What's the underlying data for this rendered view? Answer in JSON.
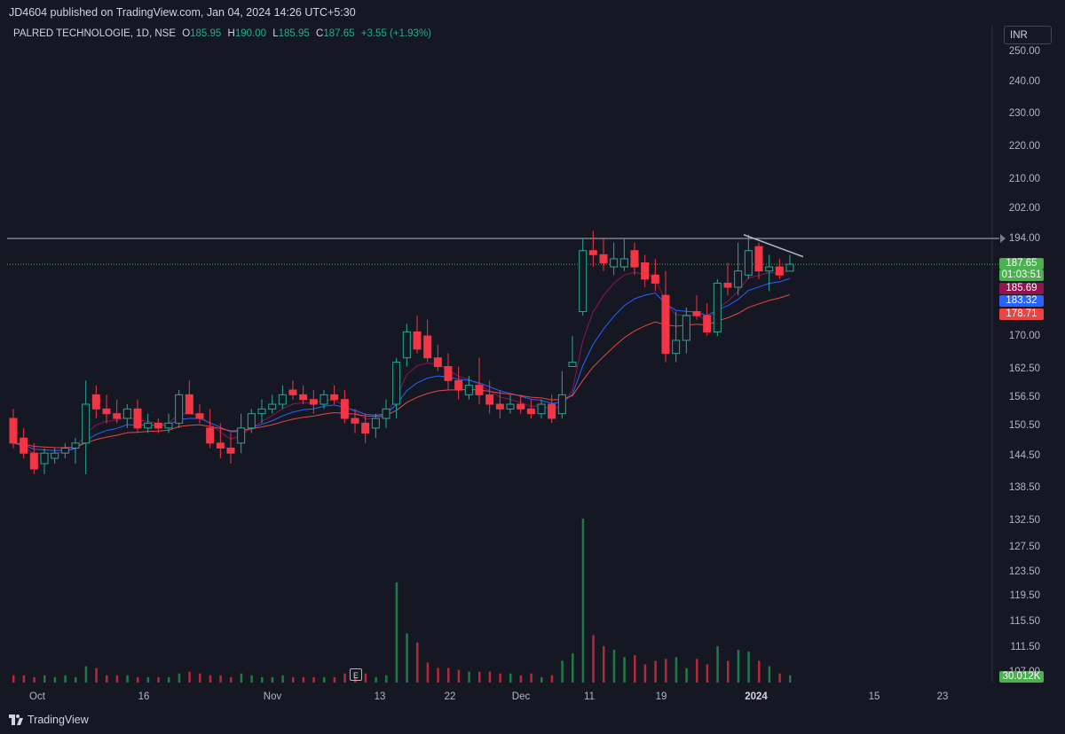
{
  "header": {
    "published_line": "JD4604 published on TradingView.com, Jan 04, 2024 14:26 UTC+5:30"
  },
  "legend": {
    "symbol": "PALRED TECHNOLOGIE, 1D, NSE",
    "o_label": "O",
    "o_value": "185.95",
    "h_label": "H",
    "h_value": "190.00",
    "l_label": "L",
    "l_value": "185.95",
    "c_label": "C",
    "c_value": "187.65",
    "change": "+3.55 (+1.93%)"
  },
  "currency": "INR",
  "price_axis": {
    "ticks": [
      "250.00",
      "240.00",
      "230.00",
      "220.00",
      "210.00",
      "202.00",
      "194.00",
      "170.00",
      "162.50",
      "156.50",
      "150.50",
      "144.50",
      "138.50",
      "132.50",
      "127.50",
      "123.50",
      "119.50",
      "115.50",
      "111.50",
      "107.00"
    ]
  },
  "price_tags": {
    "last_price": "187.65",
    "countdown": "01:03:51",
    "ema1": "185.69",
    "ema2": "183.32",
    "ema3": "178.71",
    "volume": "30.012K"
  },
  "time_axis": {
    "labels": [
      "Oct",
      "16",
      "Nov",
      "13",
      "22",
      "Dec",
      "11",
      "19",
      "2024",
      "15",
      "23"
    ],
    "bold_label": "2024"
  },
  "earnings_marker": "E",
  "footer": {
    "brand": "TradingView"
  },
  "colors": {
    "up": "#22ab94",
    "down": "#f23645",
    "ema1": "#8e1550",
    "ema2": "#2962ff",
    "ema3": "#e84545",
    "background": "#151823",
    "last_price_tag": "#4caf50"
  },
  "chart_data": {
    "type": "candlestick",
    "ohlc": [
      [
        152,
        154,
        146,
        147
      ],
      [
        148,
        150,
        144,
        145
      ],
      [
        145,
        147,
        141,
        142
      ],
      [
        143,
        146,
        141,
        145
      ],
      [
        144,
        146,
        143,
        145
      ],
      [
        145,
        147,
        144,
        146
      ],
      [
        146,
        148,
        143,
        147
      ],
      [
        147,
        160,
        141,
        155
      ],
      [
        157,
        159,
        152,
        154
      ],
      [
        154,
        157,
        151,
        153
      ],
      [
        153,
        156,
        151,
        152
      ],
      [
        152,
        155,
        150,
        154
      ],
      [
        154,
        156,
        149,
        150
      ],
      [
        150,
        153,
        149,
        151
      ],
      [
        151,
        152,
        149,
        150
      ],
      [
        150,
        153,
        149,
        151
      ],
      [
        151,
        158,
        150,
        157
      ],
      [
        157,
        160,
        153,
        153
      ],
      [
        153,
        155,
        151,
        152
      ],
      [
        150,
        154,
        146,
        147
      ],
      [
        147,
        151,
        144,
        146
      ],
      [
        146,
        149,
        143,
        145
      ],
      [
        147,
        153,
        145,
        150
      ],
      [
        150,
        154,
        149,
        153
      ],
      [
        153,
        156,
        151,
        154
      ],
      [
        154,
        157,
        153,
        155
      ],
      [
        155,
        159,
        154,
        157
      ],
      [
        158,
        160,
        156,
        157
      ],
      [
        157,
        159,
        155,
        156
      ],
      [
        156,
        158,
        153,
        155
      ],
      [
        155,
        158,
        154,
        157
      ],
      [
        157,
        159,
        155,
        156
      ],
      [
        156,
        158,
        151,
        152
      ],
      [
        152,
        154,
        149,
        151
      ],
      [
        151,
        153,
        147,
        149
      ],
      [
        150,
        153,
        148,
        152
      ],
      [
        152,
        156,
        150,
        154
      ],
      [
        155,
        165,
        152,
        164
      ],
      [
        165,
        173,
        163,
        171
      ],
      [
        171,
        175,
        166,
        167
      ],
      [
        170,
        174,
        164,
        165
      ],
      [
        165,
        168,
        162,
        163
      ],
      [
        163,
        166,
        158,
        160
      ],
      [
        160,
        163,
        156,
        158
      ],
      [
        157,
        161,
        156,
        159
      ],
      [
        159,
        165,
        155,
        157
      ],
      [
        157,
        160,
        153,
        155
      ],
      [
        155,
        158,
        152,
        154
      ],
      [
        154,
        157,
        153,
        155
      ],
      [
        155,
        157,
        153,
        154
      ],
      [
        154,
        156,
        152,
        153
      ],
      [
        153,
        156,
        152,
        155
      ],
      [
        155,
        157,
        151,
        152
      ],
      [
        153,
        162,
        152,
        157
      ],
      [
        163,
        170,
        163,
        164
      ],
      [
        176,
        194,
        175,
        191
      ],
      [
        191,
        196,
        187,
        190
      ],
      [
        190,
        194,
        186,
        188
      ],
      [
        187,
        193,
        185,
        189
      ],
      [
        187,
        194,
        186,
        189
      ],
      [
        191,
        193,
        185,
        187
      ],
      [
        188,
        190,
        182,
        184
      ],
      [
        185,
        189,
        181,
        183
      ],
      [
        180,
        186,
        164,
        166
      ],
      [
        166,
        176,
        164,
        169
      ],
      [
        169,
        177,
        166,
        175
      ],
      [
        176,
        180,
        174,
        175
      ],
      [
        175,
        178,
        170,
        171
      ],
      [
        171,
        184,
        170,
        183
      ],
      [
        183,
        188,
        180,
        182
      ],
      [
        182,
        193,
        180,
        186
      ],
      [
        185,
        195,
        184,
        191
      ],
      [
        192,
        193,
        184,
        186
      ],
      [
        186,
        190,
        181,
        187
      ],
      [
        187,
        189,
        184,
        185
      ],
      [
        185.95,
        190,
        185.95,
        187.65
      ]
    ],
    "volume_colors": "up=green, down=red",
    "ema_values": {
      "ema1": 185.69,
      "ema2": 183.32,
      "ema3": 178.71
    },
    "resistance_level": 194.0,
    "last_price": 187.65
  }
}
